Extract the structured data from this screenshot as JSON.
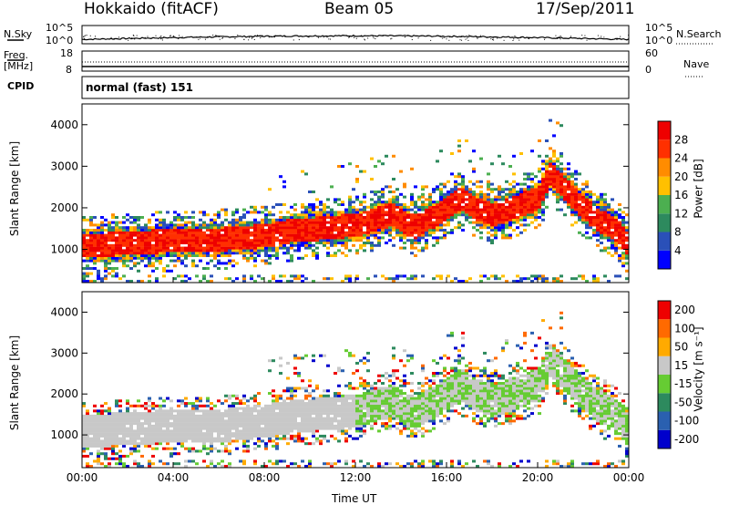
{
  "header": {
    "radar": "Hokkaido (fitACF)",
    "beam": "Beam 05",
    "date": "17/Sep/2011"
  },
  "noise_panel": {
    "left_label": "N.Sky",
    "right_label": "N.Search",
    "ticks_left": [
      "10^5",
      "10^0"
    ],
    "ticks_right": [
      "10^5",
      "10^0"
    ]
  },
  "freq_panel": {
    "left_label_line1": "Freq.",
    "left_label_line2": "[MHz]",
    "right_label": "Nave",
    "ticks_left": [
      "18",
      "8"
    ],
    "ticks_right": [
      "60",
      "0"
    ]
  },
  "cpid": {
    "label": "CPID",
    "value": "normal (fast) 151"
  },
  "chart_data": [
    {
      "type": "heatmap",
      "panel": "power",
      "ylabel": "Slant Range [km]",
      "ylim": [
        200,
        4500
      ],
      "yticks": [
        "1000",
        "2000",
        "3000",
        "4000"
      ],
      "colorbar_label": "Power [dB]",
      "colorbar_ticks": [
        "4",
        "8",
        "12",
        "16",
        "20",
        "24",
        "28"
      ],
      "colorbar_range": [
        0,
        32
      ],
      "colors": [
        "#0000ff",
        "#2a50b8",
        "#2d8a5e",
        "#4caf50",
        "#ffc000",
        "#ff8c00",
        "#ff3000",
        "#ee0000"
      ],
      "echo_bands": [
        {
          "t": [
            0,
            3,
            6,
            8,
            9,
            10,
            12,
            13.5,
            14.5,
            15.5,
            16.5,
            17,
            18,
            19,
            20,
            20.5,
            21.5,
            22.5,
            23.5,
            24
          ],
          "range": [
            1050,
            1150,
            1200,
            1300,
            1400,
            1450,
            1550,
            1800,
            1500,
            1800,
            2200,
            2000,
            1800,
            2000,
            2200,
            2800,
            2200,
            1700,
            1400,
            1000
          ],
          "width": 400,
          "level": 26
        }
      ]
    },
    {
      "type": "heatmap",
      "panel": "velocity",
      "ylabel": "Slant Range [km]",
      "ylim": [
        200,
        4500
      ],
      "yticks": [
        "1000",
        "2000",
        "3000",
        "4000"
      ],
      "colorbar_label": "Velocity [m s⁻¹]",
      "colorbar_ticks": [
        "200",
        "100",
        "50",
        "15",
        "-15",
        "-50",
        "-100",
        "-200"
      ],
      "colorbar_range": [
        -250,
        250
      ],
      "colors": [
        "#0000cc",
        "#2a60b0",
        "#2d8a5e",
        "#66cc33",
        "#c8c8c8",
        "#ffaa00",
        "#ff6a00",
        "#ee0000"
      ],
      "xlabel": "Time UT",
      "xticks": [
        "00:00",
        "04:00",
        "08:00",
        "12:00",
        "16:00",
        "20:00",
        "00:00"
      ],
      "xlim": [
        0,
        24
      ]
    }
  ]
}
